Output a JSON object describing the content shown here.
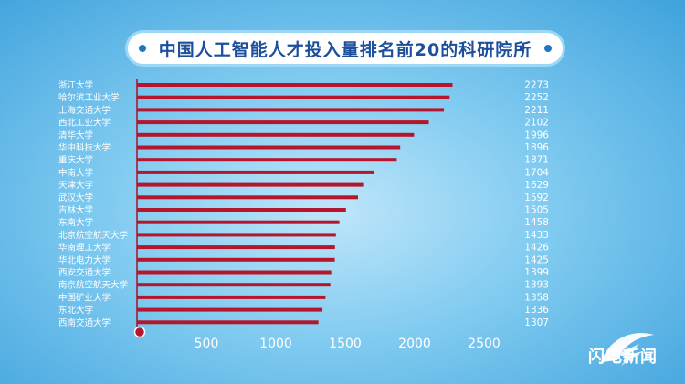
{
  "title": "中国人工智能人才投入量排名前20的科研院所",
  "logo_text": "闪电新闻",
  "colors": {
    "bar": "#b5162b",
    "title": "#1d4f9c",
    "text": "#ffffff",
    "baseline": "#a6112a"
  },
  "chart_data": {
    "type": "bar",
    "orientation": "horizontal",
    "title": "中国人工智能人才投入量排名前20的科研院所",
    "xlabel": "",
    "ylabel": "",
    "xlim": [
      0,
      2500
    ],
    "xticks": [
      500,
      1000,
      1500,
      2000,
      2500
    ],
    "categories": [
      "浙江大学",
      "哈尔滨工业大学",
      "上海交通大学",
      "西北工业大学",
      "清华大学",
      "华中科技大学",
      "重庆大学",
      "中南大学",
      "天津大学",
      "武汉大学",
      "吉林大学",
      "东南大学",
      "北京航空航天大学",
      "华南理工大学",
      "华北电力大学",
      "西安交通大学",
      "南京航空航天大学",
      "中国矿业大学",
      "东北大学",
      "西南交通大学"
    ],
    "values": [
      2273,
      2252,
      2211,
      2102,
      1996,
      1896,
      1871,
      1704,
      1629,
      1592,
      1505,
      1458,
      1433,
      1426,
      1425,
      1399,
      1393,
      1358,
      1336,
      1307
    ],
    "value_labels": [
      "2273",
      "2252",
      "2211",
      "2102",
      "1996",
      "1896",
      "1871",
      "1704",
      "1629",
      "1592",
      "1505",
      "1458",
      "1433",
      "1426",
      "1425",
      "1399",
      "1393",
      "1358",
      "1336",
      "1307"
    ],
    "grid": false,
    "legend": "none"
  }
}
